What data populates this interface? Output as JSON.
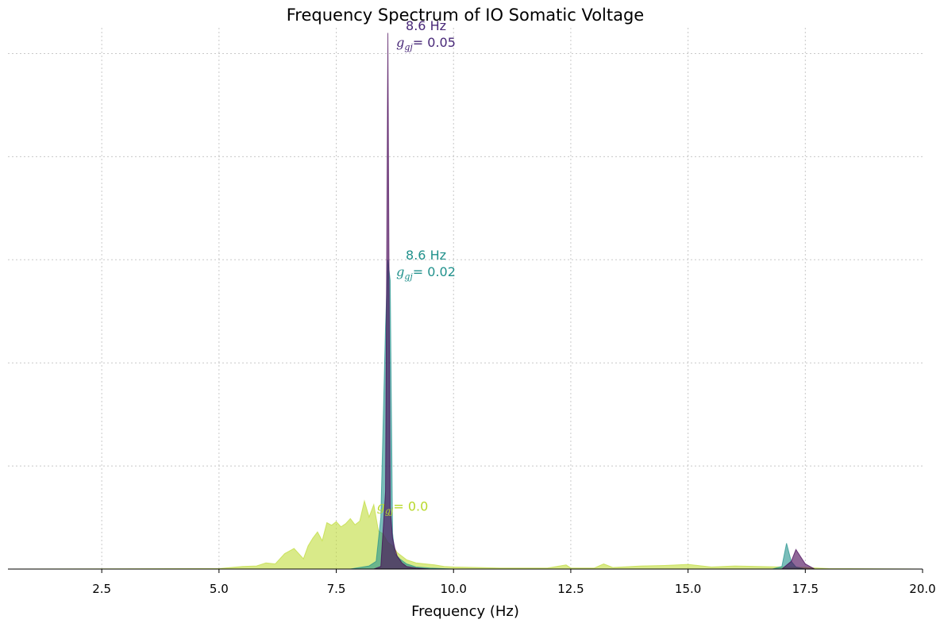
{
  "chart_data": {
    "type": "area",
    "title": "Frequency Spectrum of IO Somatic Voltage",
    "xlabel": "Frequency (Hz)",
    "ylabel": "",
    "xlim": [
      0.5,
      20.0
    ],
    "ylim": [
      0,
      1.05
    ],
    "xticks": [
      2.5,
      5.0,
      7.5,
      10.0,
      12.5,
      15.0,
      17.5,
      20.0
    ],
    "xtick_labels": [
      "2.5",
      "5.0",
      "7.5",
      "10.0",
      "12.5",
      "15.0",
      "17.5",
      "20.0"
    ],
    "yticks": [
      0.2,
      0.4,
      0.6,
      0.8,
      1.0
    ],
    "ytick_labels_visible": false,
    "grid": true,
    "legend": "none",
    "series": [
      {
        "color": "#bfdc3a",
        "x": [
          0.5,
          5.0,
          5.5,
          5.8,
          6.0,
          6.2,
          6.4,
          6.5,
          6.6,
          6.8,
          6.9,
          7.0,
          7.1,
          7.2,
          7.3,
          7.4,
          7.5,
          7.6,
          7.7,
          7.8,
          7.9,
          8.0,
          8.1,
          8.2,
          8.3,
          8.4,
          8.5,
          8.6,
          8.7,
          8.8,
          8.9,
          9.0,
          9.2,
          9.4,
          9.6,
          9.8,
          10.0,
          10.5,
          11.0,
          12.0,
          12.4,
          12.5,
          13.0,
          13.2,
          13.4,
          14.0,
          14.5,
          15.0,
          15.5,
          16.0,
          16.5,
          17.0,
          17.5,
          18.0,
          20.0
        ],
        "y": [
          0.0,
          0.001,
          0.005,
          0.006,
          0.012,
          0.01,
          0.03,
          0.035,
          0.04,
          0.02,
          0.045,
          0.06,
          0.072,
          0.055,
          0.09,
          0.085,
          0.092,
          0.082,
          0.088,
          0.098,
          0.086,
          0.093,
          0.132,
          0.101,
          0.125,
          0.074,
          0.068,
          0.052,
          0.045,
          0.032,
          0.025,
          0.018,
          0.012,
          0.01,
          0.008,
          0.005,
          0.004,
          0.003,
          0.002,
          0.002,
          0.008,
          0.002,
          0.002,
          0.01,
          0.003,
          0.006,
          0.007,
          0.009,
          0.004,
          0.006,
          0.005,
          0.004,
          0.003,
          0.001,
          0.0
        ]
      },
      {
        "color": "#21918c",
        "x": [
          0.5,
          7.8,
          8.0,
          8.2,
          8.35,
          8.45,
          8.55,
          8.6,
          8.65,
          8.7,
          8.75,
          8.85,
          9.0,
          9.2,
          9.5,
          10.0,
          16.8,
          17.0,
          17.1,
          17.2,
          17.3,
          17.5,
          20.0
        ],
        "y": [
          0.0,
          0.0,
          0.003,
          0.006,
          0.015,
          0.1,
          0.47,
          0.6,
          0.56,
          0.07,
          0.03,
          0.02,
          0.01,
          0.004,
          0.002,
          0.0,
          0.0,
          0.005,
          0.05,
          0.015,
          0.004,
          0.0,
          0.0
        ]
      },
      {
        "color": "#440154",
        "x": [
          0.5,
          8.3,
          8.45,
          8.55,
          8.6,
          8.65,
          8.7,
          8.75,
          8.8,
          8.9,
          9.0,
          9.2,
          9.5,
          17.0,
          17.2,
          17.3,
          17.5,
          17.7,
          20.0
        ],
        "y": [
          0.0,
          0.0,
          0.005,
          0.15,
          1.04,
          0.12,
          0.06,
          0.04,
          0.025,
          0.012,
          0.005,
          0.002,
          0.0,
          0.0,
          0.015,
          0.038,
          0.01,
          0.0,
          0.0
        ]
      }
    ],
    "annotations": [
      {
        "freq_text": "8.6 Hz",
        "g_symbol": "g",
        "g_sub": "gj",
        "g_value": "= 0.05",
        "color": "#482878",
        "x": 8.6,
        "y": 1.055
      },
      {
        "freq_text": "8.6 Hz",
        "g_symbol": "g",
        "g_sub": "gj",
        "g_value": "= 0.02",
        "color": "#21918c",
        "x": 8.6,
        "y": 0.61
      },
      {
        "freq_text": "",
        "g_symbol": "g",
        "g_sub": "gj",
        "g_value": "= 0.0",
        "color": "#b8d82a",
        "x": 8.1,
        "y": 0.155
      }
    ]
  }
}
